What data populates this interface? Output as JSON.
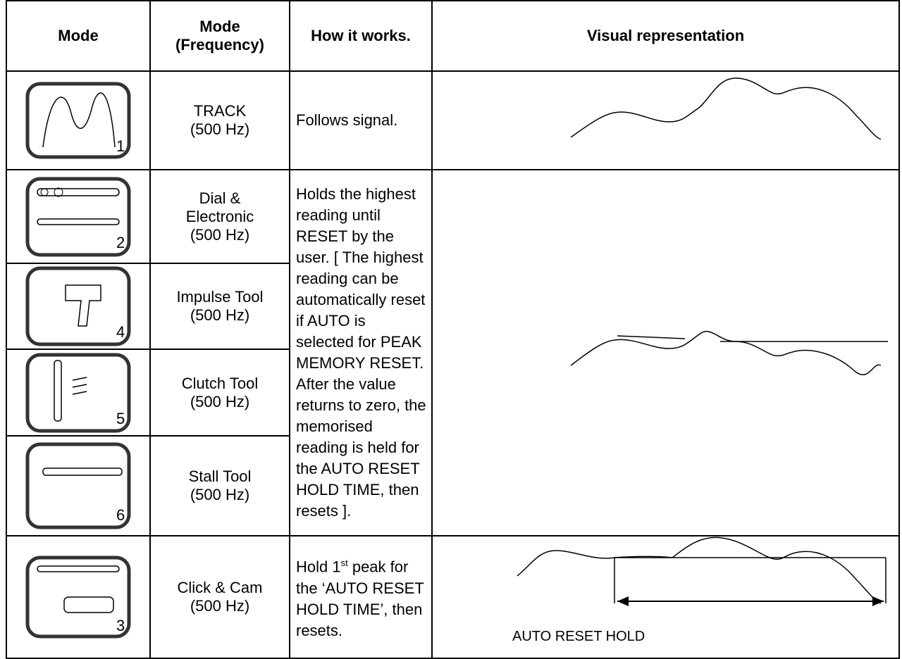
{
  "header": {
    "mode": "Mode",
    "mode_frequency": [
      "Mode",
      "(Frequency)"
    ],
    "how_it_works": "How it works.",
    "visual": "Visual representation"
  },
  "rows": [
    {
      "icon_number": "1",
      "mode": "TRACK",
      "frequency": "(500 Hz)",
      "description": "Follows signal."
    },
    {
      "icon_number": "2",
      "mode": [
        "Dial &",
        "Electronic"
      ],
      "frequency": "(500 Hz)",
      "description": "Holds the highest reading until RESET by the user. [ The highest reading can be automatically reset if AUTO is selected for PEAK MEMORY RESET. After the value returns to zero, the memorised reading is held for the AUTO RESET HOLD TIME, then resets ]."
    },
    {
      "icon_number": "4",
      "mode": "Impulse Tool",
      "frequency": "(500 Hz)"
    },
    {
      "icon_number": "5",
      "mode": "Clutch Tool",
      "frequency": "(500 Hz)"
    },
    {
      "icon_number": "6",
      "mode": "Stall Tool",
      "frequency": "(500 Hz)"
    },
    {
      "icon_number": "3",
      "mode": "Click & Cam",
      "frequency": "(500 Hz)",
      "description": {
        "before": "Hold 1",
        "sup": "st",
        "after": " peak for the ‘AUTO RESET HOLD TIME’, then resets."
      },
      "visual_label": "AUTO RESET HOLD"
    }
  ]
}
